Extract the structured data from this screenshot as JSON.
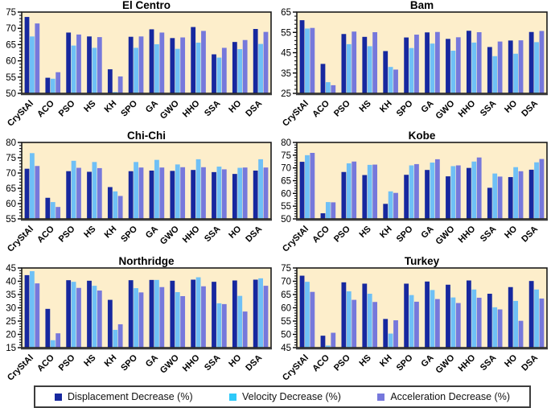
{
  "legend": {
    "items": [
      {
        "label": "Displacement Decrease (%)",
        "color": "#17289F"
      },
      {
        "label": "Velocity Decrease (%)",
        "color": "#2EC9F9"
      },
      {
        "label": "Acceleration Decrease (%)",
        "color": "#7678DC"
      }
    ]
  },
  "style": {
    "plot_bg": "#FDEECB",
    "border_color": "#1A1A1A",
    "axis_color": "#3A3A3A"
  },
  "chart_data": [
    {
      "type": "bar",
      "title": "El Centro",
      "ylim": [
        50,
        75
      ],
      "ytick_step": 5,
      "minor_tick_step": 1,
      "categories": [
        "CryStAl",
        "ACO",
        "PSO",
        "HS",
        "KH",
        "SPO",
        "GA",
        "GWO",
        "HHO",
        "SSA",
        "HO",
        "DSA"
      ],
      "series": [
        {
          "name": "Displacement Decrease (%)",
          "color": "#17289F",
          "values": [
            73.5,
            54.8,
            68.7,
            67.5,
            57.4,
            67.4,
            69.7,
            67.0,
            70.4,
            62.0,
            65.8,
            69.8
          ]
        },
        {
          "name": "Velocity Decrease (%)",
          "color": "#6FC0F6",
          "values": [
            67.5,
            54.5,
            64.7,
            64.0,
            50.4,
            64.0,
            65.1,
            63.7,
            65.6,
            61.0,
            63.6,
            65.2
          ]
        },
        {
          "name": "Acceleration Decrease (%)",
          "color": "#7678DC",
          "values": [
            71.5,
            56.5,
            68.1,
            67.3,
            55.2,
            67.5,
            68.7,
            67.2,
            69.2,
            64.0,
            66.4,
            68.9
          ]
        }
      ]
    },
    {
      "type": "bar",
      "title": "Bam",
      "ylim": [
        25,
        65
      ],
      "ytick_step": 10,
      "minor_tick_step": 2,
      "categories": [
        "CryStAl",
        "ACO",
        "PSO",
        "HS",
        "KH",
        "SPO",
        "GA",
        "GWO",
        "HHO",
        "SSA",
        "HO",
        "DSA"
      ],
      "series": [
        {
          "name": "Displacement Decrease (%)",
          "color": "#17289F",
          "values": [
            61.0,
            39.5,
            54.2,
            52.8,
            45.8,
            52.5,
            55.0,
            51.8,
            55.8,
            47.8,
            51.0,
            55.2
          ]
        },
        {
          "name": "Velocity Decrease (%)",
          "color": "#6FC0F6",
          "values": [
            56.9,
            30.5,
            49.2,
            48.2,
            38.0,
            47.3,
            49.5,
            46.0,
            50.0,
            43.3,
            44.5,
            50.2
          ]
        },
        {
          "name": "Acceleration Decrease (%)",
          "color": "#7678DC",
          "values": [
            57.2,
            29.0,
            55.4,
            55.1,
            36.7,
            53.9,
            55.2,
            52.6,
            55.1,
            50.5,
            51.1,
            55.7
          ]
        }
      ]
    },
    {
      "type": "bar",
      "title": "Chi-Chi",
      "ylim": [
        55,
        80
      ],
      "ytick_step": 5,
      "minor_tick_step": 1,
      "categories": [
        "CryStAl",
        "ACO",
        "PSO",
        "HS",
        "KH",
        "SPO",
        "GA",
        "GWO",
        "HHO",
        "SSA",
        "HO",
        "DSA"
      ],
      "series": [
        {
          "name": "Displacement Decrease (%)",
          "color": "#17289F",
          "values": [
            71.4,
            61.9,
            70.6,
            70.4,
            65.4,
            70.6,
            70.8,
            70.7,
            71.0,
            70.3,
            69.7,
            70.8
          ]
        },
        {
          "name": "Velocity Decrease (%)",
          "color": "#6FC0F6",
          "values": [
            76.5,
            60.5,
            74.0,
            73.6,
            64.0,
            73.6,
            74.3,
            72.8,
            74.5,
            72.1,
            71.7,
            74.5
          ]
        },
        {
          "name": "Acceleration Decrease (%)",
          "color": "#7678DC",
          "values": [
            72.3,
            58.9,
            71.7,
            71.6,
            62.5,
            71.8,
            71.8,
            71.9,
            71.9,
            71.2,
            71.8,
            71.8
          ]
        }
      ]
    },
    {
      "type": "bar",
      "title": "Kobe",
      "ylim": [
        50,
        80
      ],
      "ytick_step": 5,
      "minor_tick_step": 1,
      "categories": [
        "CryStAl",
        "ACO",
        "PSO",
        "HS",
        "KH",
        "SPO",
        "GA",
        "GWO",
        "HHO",
        "SSA",
        "HO",
        "DSA"
      ],
      "series": [
        {
          "name": "Displacement Decrease (%)",
          "color": "#17289F",
          "values": [
            72.4,
            52.2,
            68.4,
            67.2,
            55.9,
            67.3,
            69.2,
            66.7,
            70.0,
            62.2,
            66.4,
            69.3
          ]
        },
        {
          "name": "Velocity Decrease (%)",
          "color": "#6FC0F6",
          "values": [
            75.0,
            56.6,
            71.8,
            71.2,
            60.8,
            71.0,
            72.1,
            70.7,
            72.5,
            67.8,
            70.3,
            72.2
          ]
        },
        {
          "name": "Acceleration Decrease (%)",
          "color": "#7678DC",
          "values": [
            75.9,
            56.5,
            72.5,
            71.3,
            60.2,
            71.5,
            73.4,
            71.0,
            74.1,
            66.6,
            68.7,
            73.5
          ]
        }
      ]
    },
    {
      "type": "bar",
      "title": "Northridge",
      "ylim": [
        15,
        45
      ],
      "ytick_step": 5,
      "minor_tick_step": 1,
      "categories": [
        "CryStAl",
        "ACO",
        "PSO",
        "HS",
        "KH",
        "SPO",
        "GA",
        "GWO",
        "HHO",
        "SSA",
        "HO",
        "DSA"
      ],
      "series": [
        {
          "name": "Displacement Decrease (%)",
          "color": "#17289F",
          "values": [
            42.3,
            29.6,
            40.4,
            40.2,
            33.0,
            40.4,
            40.5,
            40.2,
            40.6,
            39.8,
            40.3,
            40.6
          ]
        },
        {
          "name": "Velocity Decrease (%)",
          "color": "#6FC0F6",
          "values": [
            43.8,
            17.8,
            39.8,
            38.3,
            21.7,
            37.4,
            40.5,
            35.9,
            41.5,
            31.7,
            34.5,
            41.1
          ]
        },
        {
          "name": "Acceleration Decrease (%)",
          "color": "#7678DC",
          "values": [
            39.2,
            20.4,
            37.5,
            36.5,
            23.8,
            35.8,
            37.8,
            34.4,
            38.1,
            31.4,
            28.6,
            38.3
          ]
        }
      ]
    },
    {
      "type": "bar",
      "title": "Turkey",
      "ylim": [
        45,
        75
      ],
      "ytick_step": 5,
      "minor_tick_step": 1,
      "categories": [
        "CryStAl",
        "ACO",
        "PSO",
        "HS",
        "KH",
        "SPO",
        "GA",
        "GWO",
        "HHO",
        "SSA",
        "HO",
        "DSA"
      ],
      "series": [
        {
          "name": "Displacement Decrease (%)",
          "color": "#17289F",
          "values": [
            72.1,
            49.5,
            69.6,
            69.1,
            55.8,
            69.1,
            69.9,
            68.7,
            70.3,
            65.3,
            67.8,
            70.1
          ]
        },
        {
          "name": "Velocity Decrease (%)",
          "color": "#6FC0F6",
          "values": [
            69.8,
            45.8,
            66.2,
            65.3,
            50.3,
            64.8,
            66.7,
            63.9,
            66.9,
            60.2,
            62.6,
            66.9
          ]
        },
        {
          "name": "Acceleration Decrease (%)",
          "color": "#7678DC",
          "values": [
            66.0,
            50.6,
            63.0,
            62.2,
            55.3,
            62.3,
            63.3,
            61.8,
            63.8,
            59.4,
            55.1,
            63.5
          ]
        }
      ]
    }
  ]
}
